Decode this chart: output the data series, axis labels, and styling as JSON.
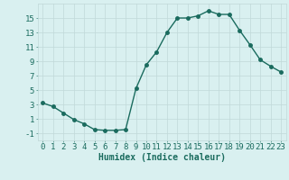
{
  "title": "",
  "xlabel": "Humidex (Indice chaleur)",
  "ylabel": "",
  "x": [
    0,
    1,
    2,
    3,
    4,
    5,
    6,
    7,
    8,
    9,
    10,
    11,
    12,
    13,
    14,
    15,
    16,
    17,
    18,
    19,
    20,
    21,
    22,
    23
  ],
  "y": [
    3.2,
    2.7,
    1.8,
    0.9,
    0.3,
    -0.5,
    -0.6,
    -0.6,
    -0.5,
    5.2,
    8.5,
    10.3,
    13.0,
    15.0,
    15.0,
    15.3,
    16.0,
    15.5,
    15.5,
    13.3,
    11.3,
    9.2,
    8.3,
    7.5
  ],
  "line_color": "#1a6b5e",
  "bg_color": "#d9f0f0",
  "grid_color": "#c0d8d8",
  "tick_color": "#1a6b5e",
  "label_color": "#1a6b5e",
  "xlim": [
    -0.5,
    23.5
  ],
  "ylim": [
    -2.0,
    17.0
  ],
  "yticks": [
    -1,
    1,
    3,
    5,
    7,
    9,
    11,
    13,
    15
  ],
  "xticks": [
    0,
    1,
    2,
    3,
    4,
    5,
    6,
    7,
    8,
    9,
    10,
    11,
    12,
    13,
    14,
    15,
    16,
    17,
    18,
    19,
    20,
    21,
    22,
    23
  ],
  "marker_size": 2.5,
  "line_width": 1.0,
  "font_size": 6.5,
  "xlabel_font_size": 7.0
}
